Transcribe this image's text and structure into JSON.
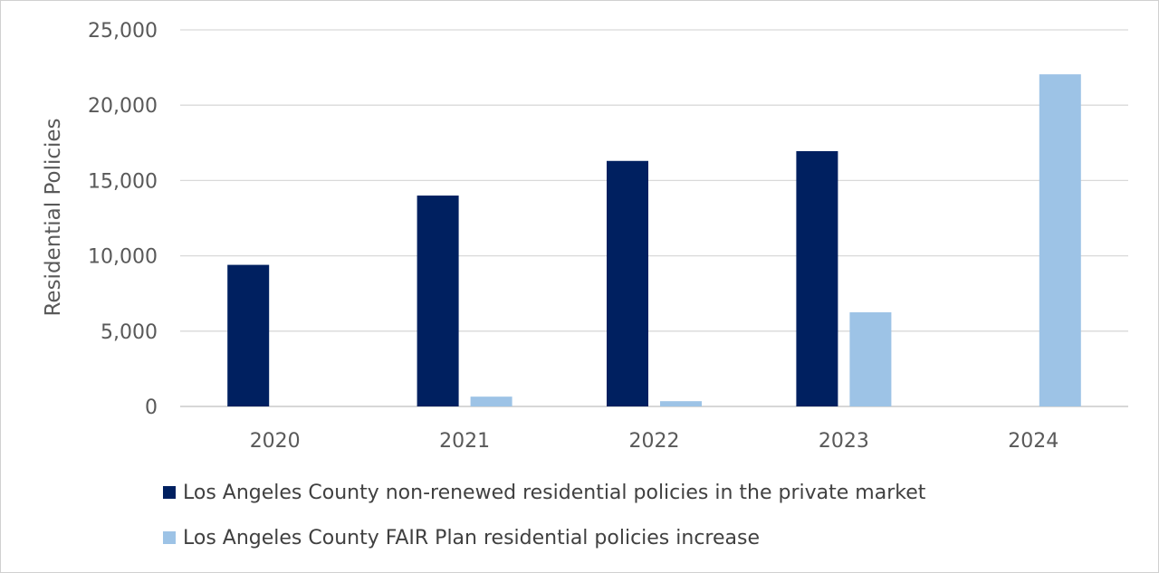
{
  "chart_data": {
    "type": "bar",
    "title": "",
    "xlabel": "",
    "ylabel": "Residential Policies",
    "categories": [
      "2020",
      "2021",
      "2022",
      "2023",
      "2024"
    ],
    "ylim": [
      0,
      25000
    ],
    "yticks": [
      0,
      5000,
      10000,
      15000,
      20000,
      25000
    ],
    "ytick_labels": [
      "0",
      "5,000",
      "10,000",
      "15,000",
      "20,000",
      "25,000"
    ],
    "grid": true,
    "legend_position": "bottom",
    "series": [
      {
        "name": "Los Angeles County non-renewed residential policies in the private market",
        "color": "#002060",
        "values": [
          9400,
          14000,
          16300,
          16950,
          null
        ]
      },
      {
        "name": "Los Angeles County FAIR Plan residential policies increase",
        "color": "#9DC3E6",
        "values": [
          null,
          650,
          350,
          6250,
          22050
        ]
      }
    ]
  }
}
